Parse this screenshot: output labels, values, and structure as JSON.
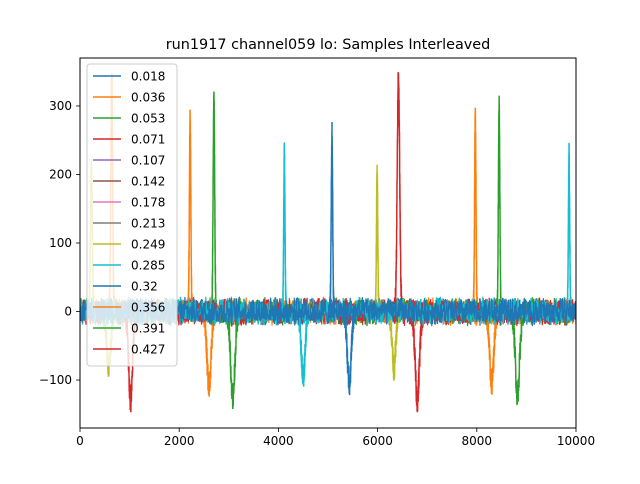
{
  "chart_data": {
    "type": "line",
    "title": "run1917 channel059 lo: Samples Interleaved",
    "xlabel": "",
    "ylabel": "",
    "xlim": [
      0,
      10000
    ],
    "ylim": [
      -170,
      370
    ],
    "x_ticks": [
      0,
      2000,
      4000,
      6000,
      8000,
      10000
    ],
    "x_tick_labels": [
      "0",
      "2000",
      "4000",
      "6000",
      "8000",
      "10000"
    ],
    "y_ticks": [
      -100,
      0,
      100,
      200,
      300
    ],
    "y_tick_labels": [
      "−100",
      "0",
      "100",
      "200",
      "300"
    ],
    "grid": false,
    "legend_position": "upper-left",
    "noise_band": [
      -22,
      22
    ],
    "series": [
      {
        "name": "0.018",
        "color": "#1f77b4",
        "pulses": []
      },
      {
        "name": "0.036",
        "color": "#ff7f0e",
        "pulses": [
          [
            640,
            340,
            25
          ],
          [
            2220,
            280,
            20
          ],
          [
            2600,
            -108,
            60
          ],
          [
            7970,
            280,
            20
          ],
          [
            8300,
            -107,
            60
          ]
        ]
      },
      {
        "name": "0.053",
        "color": "#2ca02c",
        "pulses": [
          [
            2700,
            310,
            22
          ],
          [
            3080,
            -127,
            60
          ],
          [
            8450,
            300,
            20
          ],
          [
            8820,
            -122,
            60
          ]
        ]
      },
      {
        "name": "0.071",
        "color": "#d62728",
        "pulses": [
          [
            1020,
            -132,
            55
          ],
          [
            6420,
            345,
            35
          ],
          [
            6800,
            -130,
            60
          ]
        ]
      },
      {
        "name": "0.107",
        "color": "#9467bd",
        "pulses": []
      },
      {
        "name": "0.142",
        "color": "#8c564b",
        "pulses": []
      },
      {
        "name": "0.178",
        "color": "#e377c2",
        "pulses": []
      },
      {
        "name": "0.213",
        "color": "#7f7f7f",
        "pulses": []
      },
      {
        "name": "0.249",
        "color": "#bcbd22",
        "pulses": [
          [
            230,
            210,
            25
          ],
          [
            580,
            -80,
            60
          ],
          [
            5990,
            203,
            18
          ],
          [
            6330,
            -85,
            50
          ]
        ]
      },
      {
        "name": "0.285",
        "color": "#17becf",
        "pulses": [
          [
            4120,
            230,
            18
          ],
          [
            4500,
            -97,
            55
          ],
          [
            9860,
            230,
            18
          ]
        ]
      },
      {
        "name": "0.32",
        "color": "#1f77b4",
        "pulses": [
          [
            5080,
            260,
            20
          ],
          [
            5430,
            -108,
            55
          ]
        ]
      },
      {
        "name": "0.356",
        "color": "#ff7f0e",
        "pulses": []
      },
      {
        "name": "0.391",
        "color": "#2ca02c",
        "pulses": []
      },
      {
        "name": "0.427",
        "color": "#d62728",
        "pulses": []
      }
    ]
  }
}
